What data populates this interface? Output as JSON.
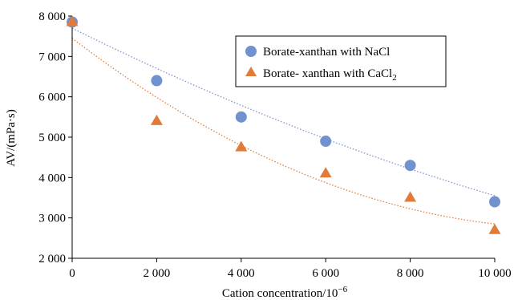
{
  "chart_data": {
    "type": "scatter",
    "xlabel": "Cation concentration/10",
    "xlabel_sup": "−6",
    "ylabel": "AV/(mPa·s)",
    "xlim": [
      0,
      10000
    ],
    "ylim": [
      2000,
      8000
    ],
    "x_ticks": [
      0,
      2000,
      4000,
      6000,
      8000,
      10000
    ],
    "x_tick_labels": [
      "0",
      "2 000",
      "4 000",
      "6 000",
      "8 000",
      "10 000"
    ],
    "y_ticks": [
      2000,
      3000,
      4000,
      5000,
      6000,
      7000,
      8000
    ],
    "y_tick_labels": [
      "2 000",
      "3 000",
      "4 000",
      "5 000",
      "6 000",
      "7 000",
      "8 000"
    ],
    "grid": false,
    "legend_position": "top-right",
    "series": [
      {
        "name": "Borate-xanthan with NaCl",
        "marker": "circle",
        "color": "#7092cf",
        "x": [
          0,
          2000,
          4000,
          6000,
          8000,
          10000
        ],
        "y": [
          7850,
          6400,
          5500,
          4900,
          4300,
          3400
        ],
        "trendline": {
          "type": "polynomial",
          "color": "#7b95cf",
          "x": [
            0,
            10000
          ],
          "coefficients": [
            7700,
            -0.52,
            1.05e-05
          ]
        }
      },
      {
        "name": "Borate- xanthan with CaCl",
        "name_sub": "2",
        "marker": "triangle",
        "color": "#e07b39",
        "x": [
          0,
          2000,
          4000,
          6000,
          8000,
          10000
        ],
        "y": [
          7850,
          5400,
          4750,
          4100,
          3500,
          2700
        ],
        "trendline": {
          "type": "polynomial",
          "color": "#e57e3b",
          "x": [
            0,
            10000
          ],
          "coefficients": [
            7450,
            -0.8,
            3.4e-05
          ]
        }
      }
    ]
  }
}
